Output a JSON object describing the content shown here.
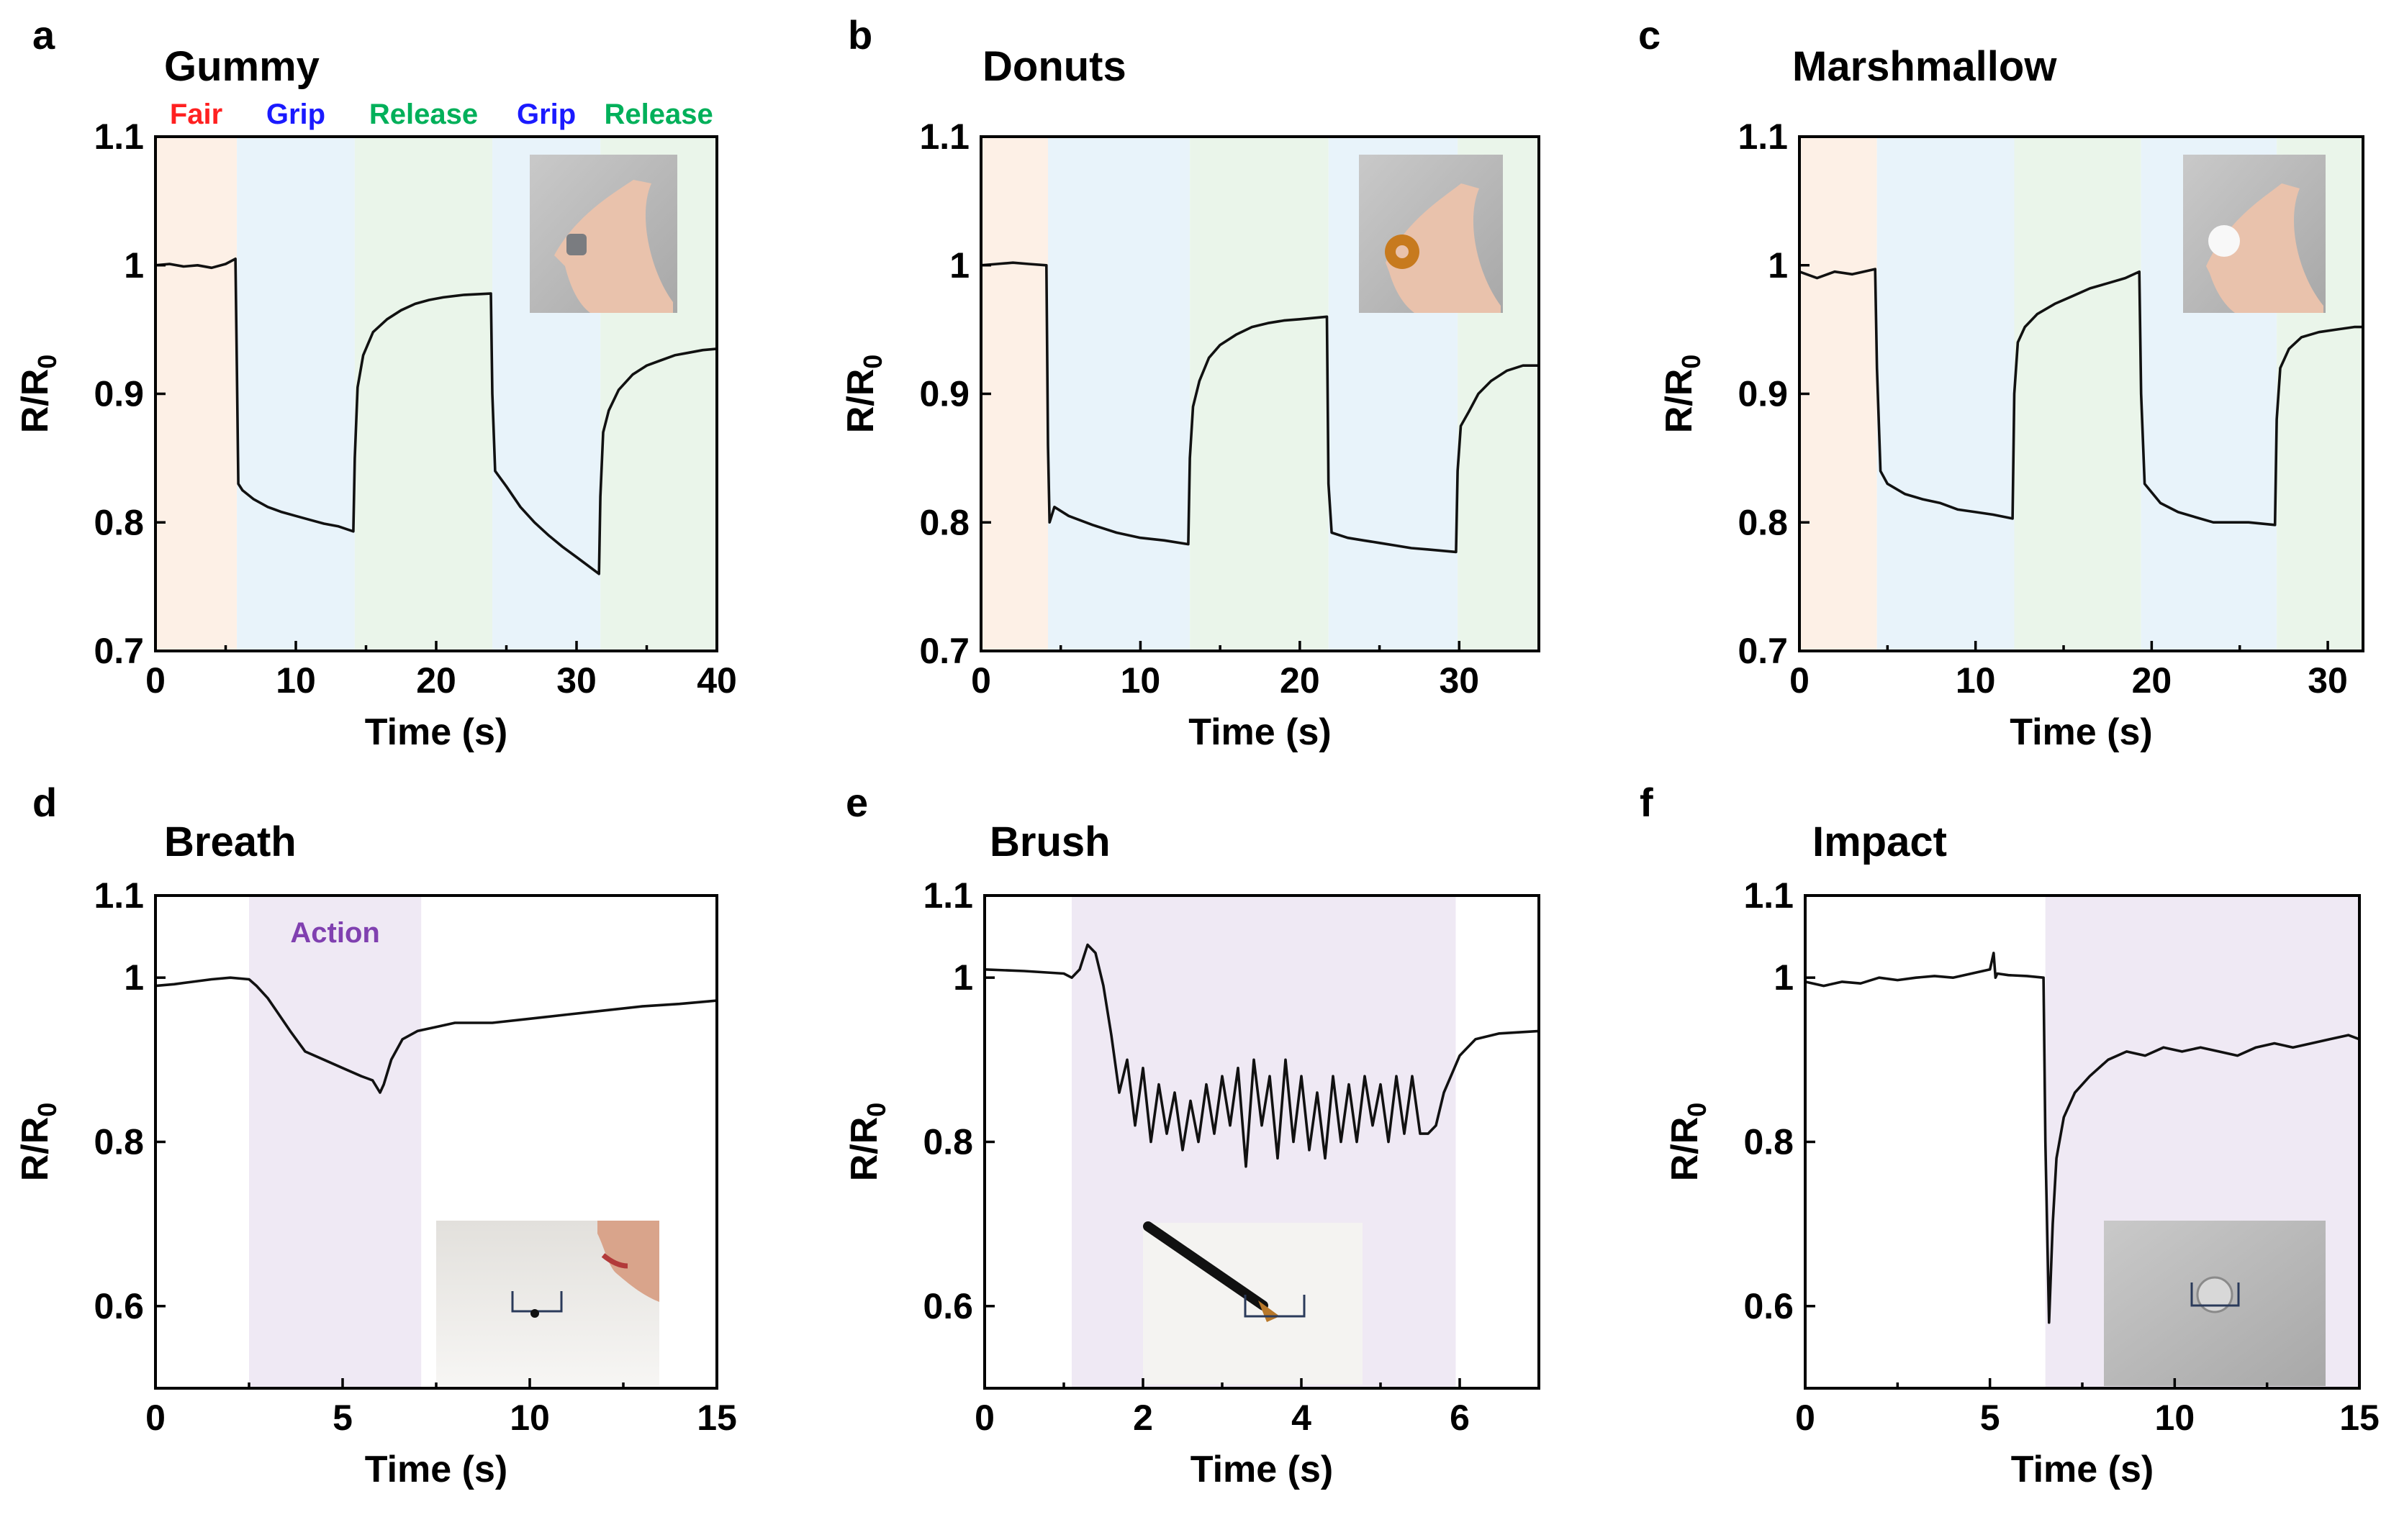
{
  "colors": {
    "fair_band": "#fdf0e6",
    "grip_band": "#e8f3fa",
    "release_band": "#eaf5ea",
    "action_band": "#efe9f4",
    "fair_text": "#ff2020",
    "grip_text": "#1a1aff",
    "release_text": "#00b05a",
    "action_text": "#8040b0",
    "trace": "#111111"
  },
  "chart_data": [
    {
      "id": "a",
      "letter": "a",
      "type": "line",
      "title": "Gummy",
      "xlabel": "Time (s)",
      "ylabel": "R/R0",
      "xlim": [
        0,
        40
      ],
      "ylim": [
        0.7,
        1.1
      ],
      "xticks": [
        0,
        10,
        20,
        30,
        40
      ],
      "xtick_labels": [
        "0",
        "10",
        "20",
        "30",
        "40"
      ],
      "yticks": [
        0.7,
        0.8,
        0.9,
        1.0,
        1.1
      ],
      "ytick_labels": [
        "0.7",
        "0.8",
        "0.9",
        "1",
        "1.1"
      ],
      "regions": [
        {
          "label": "Fair",
          "from": 0,
          "to": 5.8,
          "kind": "fair"
        },
        {
          "label": "Grip",
          "from": 5.8,
          "to": 14.2,
          "kind": "grip"
        },
        {
          "label": "Release",
          "from": 14.2,
          "to": 24.0,
          "kind": "release"
        },
        {
          "label": "Grip",
          "from": 24.0,
          "to": 31.7,
          "kind": "grip"
        },
        {
          "label": "Release",
          "from": 31.7,
          "to": 40,
          "kind": "release"
        }
      ],
      "show_region_labels": true,
      "inset": "hand-holding-gummy",
      "inset_caption": "",
      "x": [
        0,
        1,
        2,
        3,
        4,
        5,
        5.7,
        5.8,
        5.9,
        6.2,
        7,
        8,
        9,
        10,
        11,
        12,
        13,
        14.1,
        14.2,
        14.4,
        14.8,
        15.5,
        16.5,
        17.5,
        18.5,
        19.5,
        20.5,
        22,
        23.9,
        24.0,
        24.2,
        25,
        26,
        27,
        28,
        29,
        30,
        31.6,
        31.7,
        31.9,
        32.3,
        33,
        34,
        35,
        36,
        37,
        38,
        39,
        40
      ],
      "y": [
        1.0,
        1.001,
        0.999,
        1.0,
        0.998,
        1.001,
        1.005,
        0.92,
        0.83,
        0.825,
        0.818,
        0.812,
        0.808,
        0.805,
        0.802,
        0.799,
        0.797,
        0.793,
        0.85,
        0.905,
        0.93,
        0.948,
        0.958,
        0.965,
        0.97,
        0.973,
        0.975,
        0.977,
        0.978,
        0.9,
        0.84,
        0.828,
        0.812,
        0.8,
        0.79,
        0.781,
        0.773,
        0.76,
        0.82,
        0.87,
        0.887,
        0.903,
        0.915,
        0.922,
        0.926,
        0.93,
        0.932,
        0.934,
        0.935
      ]
    },
    {
      "id": "b",
      "letter": "b",
      "type": "line",
      "title": "Donuts",
      "xlabel": "Time (s)",
      "ylabel": "R/R0",
      "xlim": [
        0,
        35
      ],
      "ylim": [
        0.7,
        1.1
      ],
      "xticks": [
        0,
        10,
        20,
        30
      ],
      "xtick_labels": [
        "0",
        "10",
        "20",
        "30"
      ],
      "yticks": [
        0.7,
        0.8,
        0.9,
        1.0,
        1.1
      ],
      "ytick_labels": [
        "0.7",
        "0.8",
        "0.9",
        "1",
        "1.1"
      ],
      "regions": [
        {
          "label": "",
          "from": 0,
          "to": 4.2,
          "kind": "fair"
        },
        {
          "label": "",
          "from": 4.2,
          "to": 13.1,
          "kind": "grip"
        },
        {
          "label": "",
          "from": 13.1,
          "to": 21.8,
          "kind": "release"
        },
        {
          "label": "",
          "from": 21.8,
          "to": 29.9,
          "kind": "grip"
        },
        {
          "label": "",
          "from": 29.9,
          "to": 35,
          "kind": "release"
        }
      ],
      "show_region_labels": false,
      "inset": "hand-holding-donut",
      "inset_caption": "",
      "x": [
        0,
        1,
        2,
        3,
        4.1,
        4.2,
        4.3,
        4.6,
        5.5,
        7,
        8.5,
        10,
        11.5,
        13.0,
        13.1,
        13.3,
        13.7,
        14.3,
        15,
        16,
        17,
        18,
        19,
        20,
        21.7,
        21.8,
        22,
        23,
        24,
        25,
        26,
        27,
        28,
        29.8,
        29.9,
        30.1,
        30.6,
        31.2,
        32,
        33,
        34,
        35
      ],
      "y": [
        1.0,
        1.001,
        1.002,
        1.001,
        1.0,
        0.86,
        0.8,
        0.812,
        0.805,
        0.798,
        0.792,
        0.788,
        0.786,
        0.783,
        0.85,
        0.89,
        0.91,
        0.928,
        0.938,
        0.946,
        0.952,
        0.955,
        0.957,
        0.958,
        0.96,
        0.83,
        0.792,
        0.788,
        0.786,
        0.784,
        0.782,
        0.78,
        0.779,
        0.777,
        0.84,
        0.875,
        0.886,
        0.9,
        0.91,
        0.918,
        0.922,
        0.922
      ]
    },
    {
      "id": "c",
      "letter": "c",
      "type": "line",
      "title": "Marshmallow",
      "xlabel": "Time (s)",
      "ylabel": "R/R0",
      "xlim": [
        0,
        32
      ],
      "ylim": [
        0.7,
        1.1
      ],
      "xticks": [
        0,
        10,
        20,
        30
      ],
      "xtick_labels": [
        "0",
        "10",
        "20",
        "30"
      ],
      "yticks": [
        0.7,
        0.8,
        0.9,
        1.0,
        1.1
      ],
      "ytick_labels": [
        "0.7",
        "0.8",
        "0.9",
        "1",
        "1.1"
      ],
      "regions": [
        {
          "label": "",
          "from": 0,
          "to": 4.4,
          "kind": "fair"
        },
        {
          "label": "",
          "from": 4.4,
          "to": 12.2,
          "kind": "grip"
        },
        {
          "label": "",
          "from": 12.2,
          "to": 19.4,
          "kind": "release"
        },
        {
          "label": "",
          "from": 19.4,
          "to": 27.1,
          "kind": "grip"
        },
        {
          "label": "",
          "from": 27.1,
          "to": 32,
          "kind": "release"
        }
      ],
      "show_region_labels": false,
      "inset": "hand-holding-marshmallow",
      "inset_caption": "",
      "x": [
        0,
        1,
        2,
        3,
        4.3,
        4.4,
        4.6,
        5,
        6,
        7,
        8,
        9,
        10,
        11,
        12.1,
        12.2,
        12.4,
        12.8,
        13.5,
        14.5,
        15.5,
        16.5,
        17.5,
        18.5,
        19.3,
        19.4,
        19.6,
        20.5,
        21.5,
        22.5,
        23.5,
        24.5,
        25.5,
        27.0,
        27.1,
        27.3,
        27.8,
        28.5,
        29.5,
        30.5,
        31.5,
        32
      ],
      "y": [
        0.995,
        0.99,
        0.995,
        0.993,
        0.997,
        0.92,
        0.84,
        0.83,
        0.822,
        0.818,
        0.815,
        0.81,
        0.808,
        0.806,
        0.803,
        0.9,
        0.94,
        0.952,
        0.962,
        0.97,
        0.976,
        0.982,
        0.986,
        0.99,
        0.995,
        0.9,
        0.83,
        0.815,
        0.808,
        0.804,
        0.8,
        0.8,
        0.8,
        0.798,
        0.88,
        0.92,
        0.935,
        0.944,
        0.948,
        0.95,
        0.952,
        0.952
      ]
    },
    {
      "id": "d",
      "letter": "d",
      "type": "line",
      "title": "Breath",
      "xlabel": "Time (s)",
      "ylabel": "R/R0",
      "xlim": [
        0,
        15
      ],
      "ylim": [
        0.5,
        1.1
      ],
      "xticks": [
        0,
        5,
        10,
        15
      ],
      "xtick_labels": [
        "0",
        "5",
        "10",
        "15"
      ],
      "yticks": [
        0.6,
        0.8,
        1.0,
        1.1
      ],
      "ytick_labels": [
        "0.6",
        "0.8",
        "1",
        "1.1"
      ],
      "regions": [
        {
          "label": "Action",
          "from": 2.5,
          "to": 7.1,
          "kind": "action"
        }
      ],
      "show_region_labels": true,
      "inset": "person-blowing-on-sensor",
      "inset_caption": "",
      "x": [
        0,
        0.5,
        1,
        1.5,
        2,
        2.5,
        2.7,
        3,
        3.3,
        3.6,
        4,
        4.5,
        5,
        5.5,
        5.8,
        6.0,
        6.1,
        6.3,
        6.6,
        7,
        7.5,
        8,
        9,
        10,
        11,
        12,
        13,
        14,
        15
      ],
      "y": [
        0.99,
        0.992,
        0.995,
        0.998,
        1.0,
        0.998,
        0.99,
        0.975,
        0.955,
        0.935,
        0.91,
        0.9,
        0.89,
        0.88,
        0.875,
        0.86,
        0.87,
        0.9,
        0.925,
        0.935,
        0.94,
        0.945,
        0.945,
        0.95,
        0.955,
        0.96,
        0.965,
        0.968,
        0.972
      ]
    },
    {
      "id": "e",
      "letter": "e",
      "type": "line",
      "title": "Brush",
      "xlabel": "Time (s)",
      "ylabel": "R/R0",
      "xlim": [
        0,
        7
      ],
      "ylim": [
        0.5,
        1.1
      ],
      "xticks": [
        0,
        2,
        4,
        6
      ],
      "xtick_labels": [
        "0",
        "2",
        "4",
        "6"
      ],
      "yticks": [
        0.6,
        0.8,
        1.0,
        1.1
      ],
      "ytick_labels": [
        "0.6",
        "0.8",
        "1",
        "1.1"
      ],
      "regions": [
        {
          "label": "",
          "from": 1.1,
          "to": 5.95,
          "kind": "action"
        }
      ],
      "show_region_labels": false,
      "inset": "brush-touching-sensor",
      "inset_caption": "",
      "x": [
        0,
        0.5,
        1.0,
        1.1,
        1.2,
        1.3,
        1.4,
        1.5,
        1.6,
        1.7,
        1.8,
        1.9,
        2.0,
        2.1,
        2.2,
        2.3,
        2.4,
        2.5,
        2.6,
        2.7,
        2.8,
        2.9,
        3.0,
        3.1,
        3.2,
        3.3,
        3.4,
        3.5,
        3.6,
        3.7,
        3.8,
        3.9,
        4.0,
        4.1,
        4.2,
        4.3,
        4.4,
        4.5,
        4.6,
        4.7,
        4.8,
        4.9,
        5.0,
        5.1,
        5.2,
        5.3,
        5.4,
        5.5,
        5.6,
        5.7,
        5.8,
        6.0,
        6.2,
        6.5,
        7.0
      ],
      "y": [
        1.01,
        1.008,
        1.005,
        1.0,
        1.01,
        1.04,
        1.03,
        0.99,
        0.93,
        0.86,
        0.9,
        0.82,
        0.89,
        0.8,
        0.87,
        0.81,
        0.86,
        0.79,
        0.85,
        0.8,
        0.87,
        0.81,
        0.88,
        0.82,
        0.89,
        0.77,
        0.9,
        0.82,
        0.88,
        0.78,
        0.9,
        0.8,
        0.88,
        0.79,
        0.86,
        0.78,
        0.88,
        0.8,
        0.87,
        0.8,
        0.88,
        0.82,
        0.87,
        0.8,
        0.88,
        0.81,
        0.88,
        0.81,
        0.81,
        0.82,
        0.86,
        0.905,
        0.925,
        0.932,
        0.935
      ]
    },
    {
      "id": "f",
      "letter": "f",
      "type": "line",
      "title": "Impact",
      "xlabel": "Time (s)",
      "ylabel": "R/R0",
      "xlim": [
        0,
        15
      ],
      "ylim": [
        0.5,
        1.1
      ],
      "xticks": [
        0,
        5,
        10,
        15
      ],
      "xtick_labels": [
        "0",
        "5",
        "10",
        "15"
      ],
      "yticks": [
        0.6,
        0.8,
        1.0,
        1.1
      ],
      "ytick_labels": [
        "0.6",
        "0.8",
        "1",
        "1.1"
      ],
      "regions": [
        {
          "label": "",
          "from": 6.5,
          "to": 15,
          "kind": "action"
        }
      ],
      "show_region_labels": false,
      "inset": "ball-on-sensor",
      "inset_caption": "",
      "x": [
        0,
        0.5,
        1,
        1.5,
        2,
        2.5,
        3,
        3.5,
        4,
        4.5,
        5,
        5.1,
        5.15,
        5.2,
        5.5,
        6,
        6.45,
        6.5,
        6.6,
        6.7,
        6.8,
        7.0,
        7.3,
        7.7,
        8.2,
        8.7,
        9.2,
        9.7,
        10.2,
        10.7,
        11.2,
        11.7,
        12.2,
        12.7,
        13.2,
        13.7,
        14.2,
        14.7,
        15
      ],
      "y": [
        0.995,
        0.99,
        0.995,
        0.993,
        1.0,
        0.997,
        1.0,
        1.002,
        1.0,
        1.005,
        1.01,
        1.03,
        1.0,
        1.005,
        1.003,
        1.002,
        1.0,
        0.8,
        0.58,
        0.7,
        0.78,
        0.83,
        0.86,
        0.88,
        0.9,
        0.91,
        0.905,
        0.915,
        0.91,
        0.915,
        0.91,
        0.905,
        0.915,
        0.92,
        0.915,
        0.92,
        0.925,
        0.93,
        0.925
      ]
    }
  ]
}
